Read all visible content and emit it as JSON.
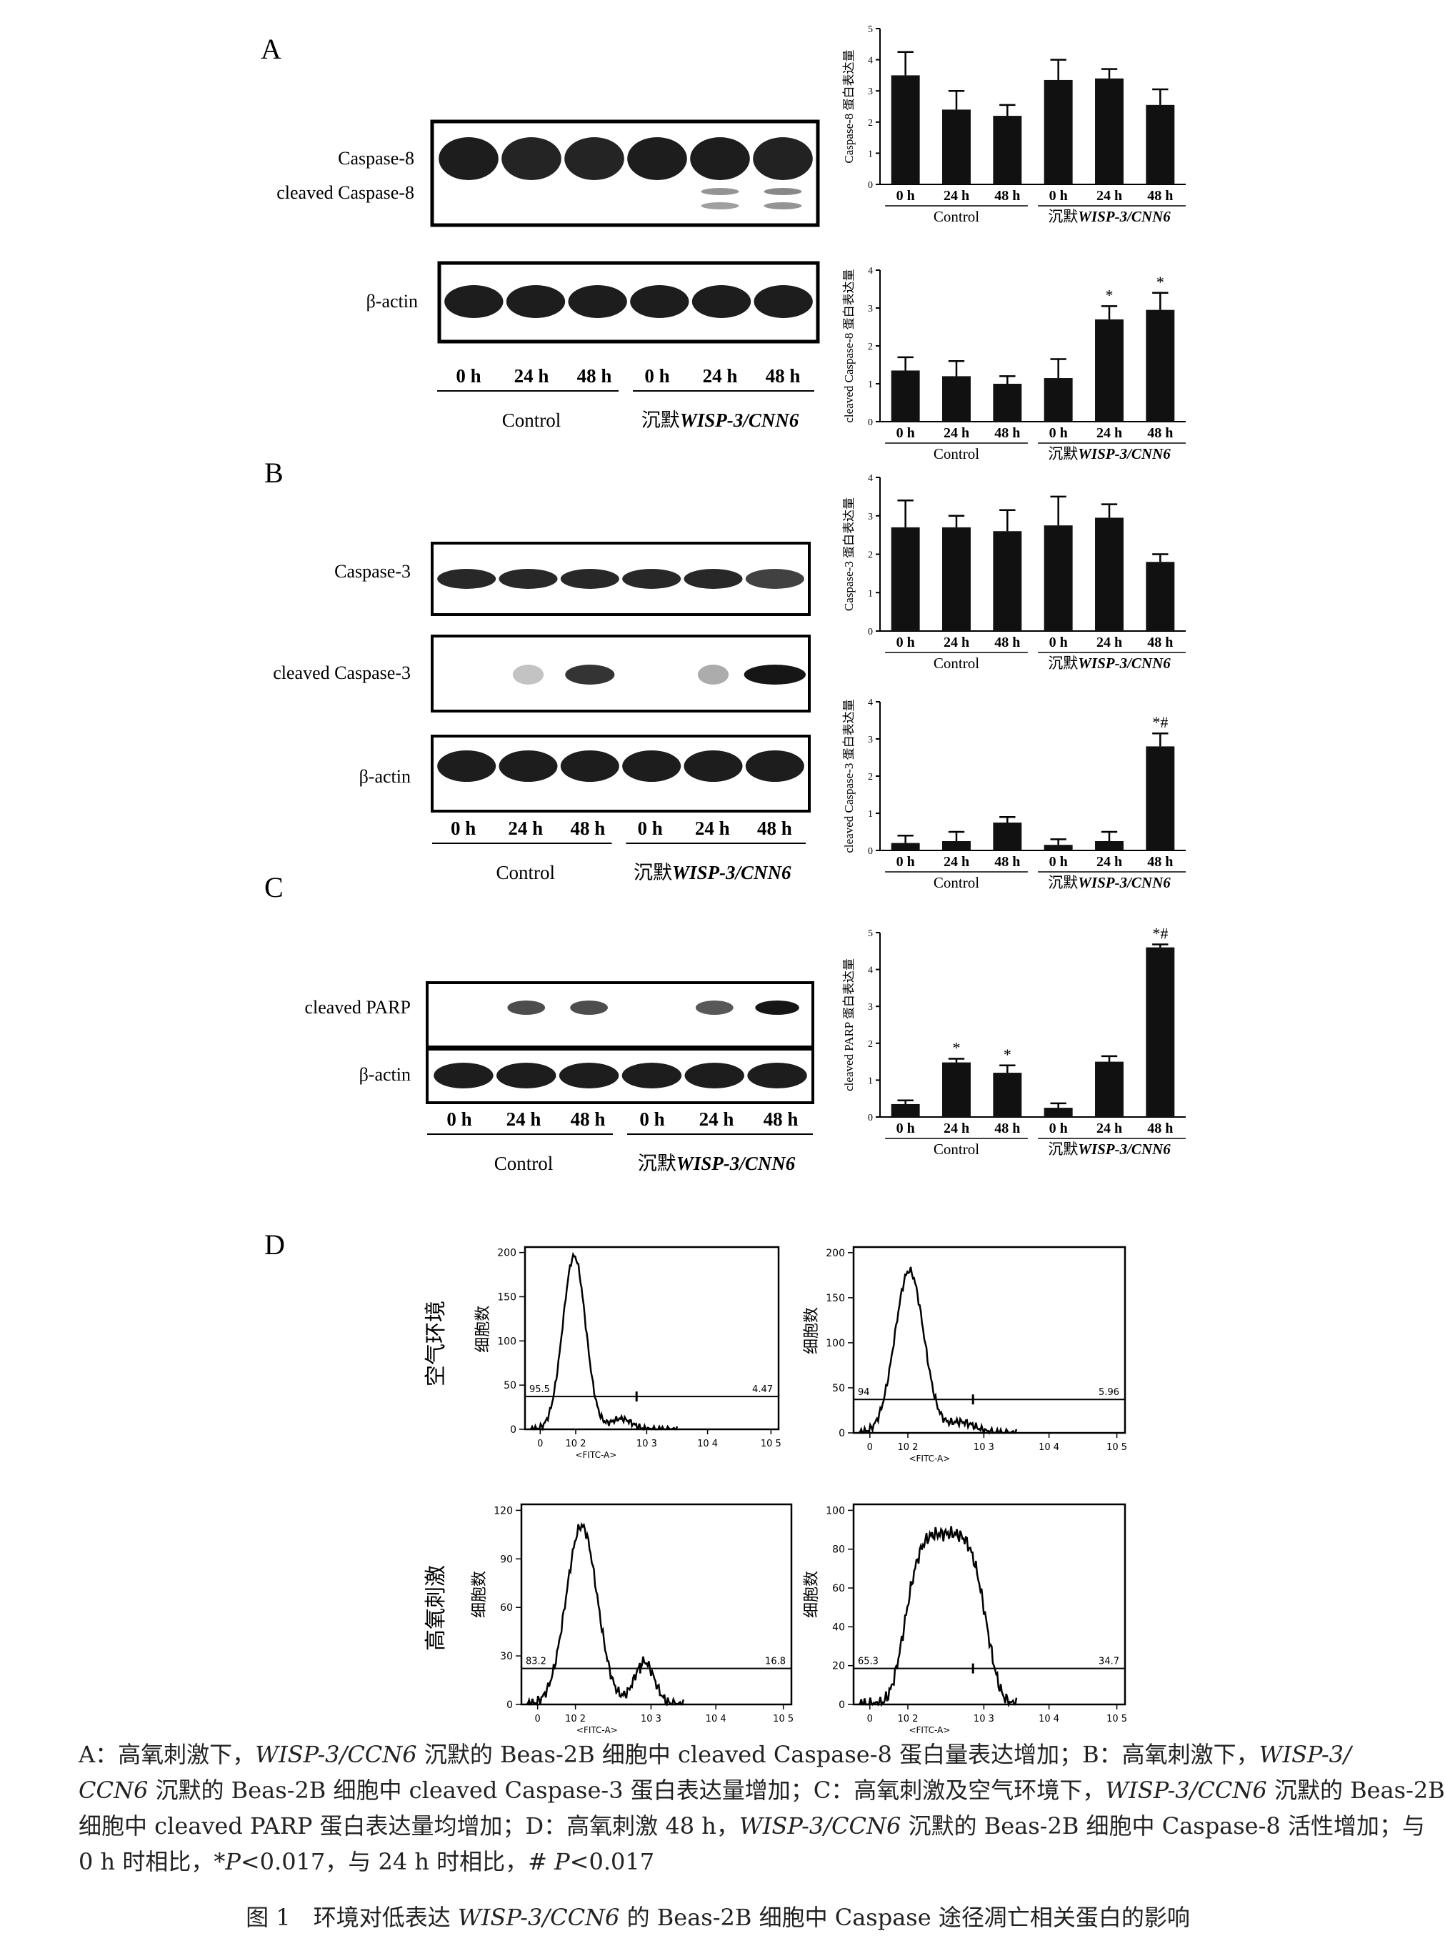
{
  "panels": {
    "A": {
      "letter": "A",
      "blot": {
        "bands": [
          {
            "label": "Caspase-8",
            "profile": [
              [
                0.95,
                0.95,
                0.95,
                0.95,
                0.95,
                0.95
              ]
            ]
          },
          {
            "label": "cleaved Caspase-8",
            "profile": [
              [
                0,
                0,
                0,
                0,
                0.35,
                0.45
              ]
            ]
          },
          {
            "label": "β-actin",
            "profile": [
              [
                0.95,
                0.95,
                0.95,
                0.95,
                0.95,
                0.95
              ]
            ]
          }
        ],
        "lanes": [
          "0 h",
          "24 h",
          "48 h",
          "0 h",
          "24 h",
          "48 h"
        ],
        "group1": "Control",
        "group2_prefix": "沉默",
        "group2_gene": "WISP-3/CNN6"
      }
    },
    "B": {
      "letter": "B",
      "blot": {
        "bands": [
          {
            "label": "Caspase-3"
          },
          {
            "label": "cleaved Caspase-3"
          },
          {
            "label": "β-actin"
          }
        ],
        "lanes": [
          "0 h",
          "24 h",
          "48 h",
          "0 h",
          "24 h",
          "48 h"
        ],
        "group1": "Control",
        "group2_prefix": "沉默",
        "group2_gene": "WISP-3/CNN6"
      }
    },
    "C": {
      "letter": "C",
      "blot": {
        "bands": [
          {
            "label": "cleaved PARP"
          },
          {
            "label": "β-actin"
          }
        ],
        "lanes": [
          "0 h",
          "24 h",
          "48 h",
          "0 h",
          "24 h",
          "48 h"
        ],
        "group1": "Control",
        "group2_prefix": "沉默",
        "group2_gene": "WISP-3/CNN6"
      }
    },
    "D": {
      "letter": "D",
      "row_labels": [
        "空气环境",
        "高氧刺激"
      ],
      "flow": [
        {
          "ylabel": "细胞数",
          "xlabel": "<FITC-A>",
          "yticks": [
            "0",
            "50",
            "100",
            "150",
            "200"
          ],
          "xticks": [
            "0",
            "10 2",
            "10 3",
            "10 4",
            "10 5"
          ],
          "left_val": "95.5",
          "right_val": "4.47"
        },
        {
          "ylabel": "细胞数",
          "xlabel": "<FITC-A>",
          "yticks": [
            "0",
            "50",
            "100",
            "150",
            "200"
          ],
          "xticks": [
            "0",
            "10 2",
            "10 3",
            "10 4",
            "10 5"
          ],
          "left_val": "94",
          "right_val": "5.96"
        },
        {
          "ylabel": "细胞数",
          "xlabel": "<FITC-A>",
          "yticks": [
            "0",
            "30",
            "60",
            "90",
            "120"
          ],
          "xticks": [
            "0",
            "10 2",
            "10 3",
            "10 4",
            "10 5"
          ],
          "left_val": "83.2",
          "right_val": "16.8"
        },
        {
          "ylabel": "细胞数",
          "xlabel": "<FITC-A>",
          "yticks": [
            "0",
            "20",
            "40",
            "60",
            "80",
            "100"
          ],
          "xticks": [
            "0",
            "10 2",
            "10 3",
            "10 4",
            "10 5"
          ],
          "left_val": "65.3",
          "right_val": "34.7"
        }
      ]
    }
  },
  "chart_data": [
    {
      "type": "bar",
      "ylabel": "Caspase-8 蛋白表达量",
      "ylim": [
        0,
        5
      ],
      "categories": [
        "0 h",
        "24 h",
        "48 h",
        "0 h",
        "24 h",
        "48 h"
      ],
      "groups": [
        "Control",
        "沉默 WISP-3/CNN6"
      ],
      "values": [
        3.5,
        2.4,
        2.2,
        3.35,
        3.4,
        2.55
      ],
      "errors": [
        0.75,
        0.6,
        0.35,
        0.65,
        0.3,
        0.5
      ],
      "annotations": [
        "",
        "",
        "",
        "",
        "",
        ""
      ]
    },
    {
      "type": "bar",
      "ylabel": "cleaved Caspase-8 蛋白表达量",
      "ylim": [
        0,
        4
      ],
      "categories": [
        "0 h",
        "24 h",
        "48 h",
        "0 h",
        "24 h",
        "48 h"
      ],
      "groups": [
        "Control",
        "沉默 WISP-3/CNN6"
      ],
      "values": [
        1.35,
        1.2,
        1.0,
        1.15,
        2.7,
        2.95
      ],
      "errors": [
        0.35,
        0.4,
        0.2,
        0.5,
        0.35,
        0.45
      ],
      "annotations": [
        "",
        "",
        "",
        "",
        "*",
        "*"
      ]
    },
    {
      "type": "bar",
      "ylabel": "Caspase-3 蛋白表达量",
      "ylim": [
        0,
        4
      ],
      "categories": [
        "0 h",
        "24 h",
        "48 h",
        "0 h",
        "24 h",
        "48 h"
      ],
      "groups": [
        "Control",
        "沉默 WISP-3/CNN6"
      ],
      "values": [
        2.7,
        2.7,
        2.6,
        2.75,
        2.95,
        1.8
      ],
      "errors": [
        0.7,
        0.3,
        0.55,
        0.75,
        0.35,
        0.2
      ],
      "annotations": [
        "",
        "",
        "",
        "",
        "",
        ""
      ]
    },
    {
      "type": "bar",
      "ylabel": "cleaved Caspase-3 蛋白表达量",
      "ylim": [
        0,
        4
      ],
      "categories": [
        "0 h",
        "24 h",
        "48 h",
        "0 h",
        "24 h",
        "48 h"
      ],
      "groups": [
        "Control",
        "沉默 WISP-3/CNN6"
      ],
      "values": [
        0.2,
        0.25,
        0.75,
        0.15,
        0.25,
        2.8
      ],
      "errors": [
        0.2,
        0.25,
        0.15,
        0.15,
        0.25,
        0.35
      ],
      "annotations": [
        "",
        "",
        "",
        "",
        "",
        "*#"
      ]
    },
    {
      "type": "bar",
      "ylabel": "cleaved PARP 蛋白表达量",
      "ylim": [
        0,
        5
      ],
      "categories": [
        "0 h",
        "24 h",
        "48 h",
        "0 h",
        "24 h",
        "48 h"
      ],
      "groups": [
        "Control",
        "沉默 WISP-3/CNN6"
      ],
      "values": [
        0.35,
        1.48,
        1.2,
        0.25,
        1.5,
        4.6
      ],
      "errors": [
        0.1,
        0.1,
        0.2,
        0.12,
        0.15,
        0.08
      ],
      "annotations": [
        "",
        "*",
        "*",
        "",
        "",
        "*#"
      ]
    }
  ],
  "caption": {
    "l1a": "A：高氧刺激下，",
    "l1b": "WISP-3/CCN6",
    "l1c": " 沉默的 Beas-2B 细胞中 cleaved Caspase-8 蛋白量表达增加；B：高氧刺激下，",
    "l1d": "WISP-3/",
    "l2a": "CCN6",
    "l2b": " 沉默的 Beas-2B 细胞中 cleaved Caspase-3 蛋白表达量增加；C：高氧刺激及空气环境下，",
    "l2c": "WISP-3/CCN6",
    "l2d": " 沉默的 Beas-2B",
    "l3a": "细胞中 cleaved PARP 蛋白表达量均增加；D：高氧刺激 48 h，",
    "l3b": "WISP-3/CCN6",
    "l3c": " 沉默的 Beas-2B 细胞中 Caspase-8 活性增加；与",
    "l4a": "0 h 时相比，*",
    "l4b": "P",
    "l4c": "<0.017，与 24 h 时相比，# ",
    "l4d": "P",
    "l4e": "<0.017"
  },
  "figtitle": {
    "a": "图 1　环境对低表达 ",
    "b": "WISP-3/CCN6",
    "c": " 的 Beas-2B 细胞中 Caspase 途径凋亡相关蛋白的影响"
  }
}
